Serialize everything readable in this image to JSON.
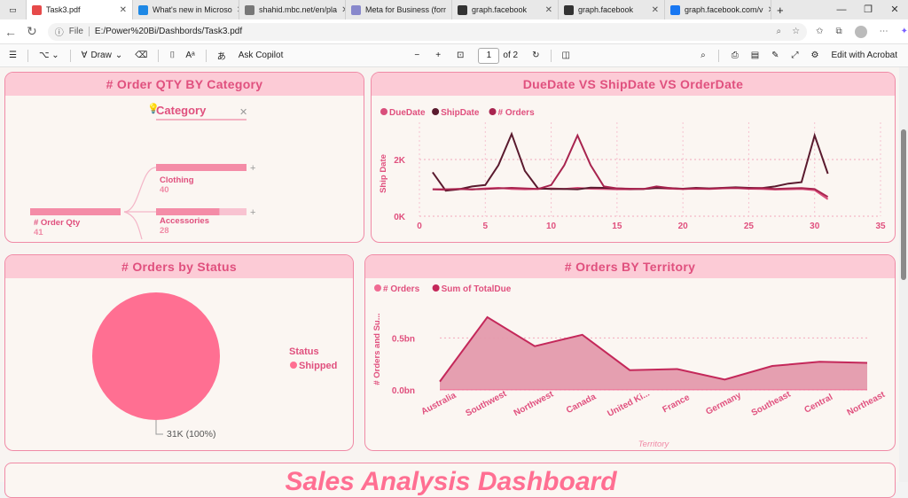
{
  "browser": {
    "tabs": [
      {
        "title": "Task3.pdf",
        "color": "#e64a4a",
        "active": true
      },
      {
        "title": "What's new in Microso",
        "color": "#1e88e5"
      },
      {
        "title": "shahid.mbc.net/en/pla",
        "color": "#777777"
      },
      {
        "title": "Meta for Business (forr",
        "color": "#8888cc"
      },
      {
        "title": "graph.facebook",
        "color": "#333333"
      },
      {
        "title": "graph.facebook",
        "color": "#333333"
      },
      {
        "title": "graph.facebook.com/v",
        "color": "#1877f2"
      }
    ],
    "new_tab": "+",
    "address_prefix": "File",
    "address": "E:/Power%20Bi/Dashbords/Task3.pdf"
  },
  "pdf_toolbar": {
    "draw": "Draw",
    "ask_copilot": "Ask Copilot",
    "page_current": "1",
    "page_total": "of 2",
    "edit_acrobat": "Edit with Acrobat"
  },
  "dashboard": {
    "order_qty": {
      "title": "# Order QTY BY Category",
      "filter_label": "Category",
      "root_label": "# Order Qty",
      "root_value": "41",
      "nodes": [
        {
          "label": "Clothing",
          "value": "40",
          "fraction": 1.0
        },
        {
          "label": "Accessories",
          "value": "28",
          "fraction": 0.7
        }
      ]
    },
    "dates": {
      "title": "DueDate VS ShipDate VS OrderDate",
      "legend": [
        "DueDate",
        "ShipDate",
        "# Orders"
      ]
    },
    "status": {
      "title": "# Orders by Status",
      "legend_title": "Status",
      "legend_item": "Shipped",
      "data_label": "31K (100%)"
    },
    "territory": {
      "title": "# Orders BY Territory",
      "legend": [
        "# Orders",
        "Sum of TotalDue"
      ]
    },
    "bottom_title": "Sales Analysis Dashboard"
  },
  "chart_data": [
    {
      "type": "line",
      "title": "DueDate VS ShipDate VS OrderDate",
      "xlabel": "",
      "ylabel": "Ship Date",
      "xlim": [
        0,
        35
      ],
      "ylim": [
        0,
        3000
      ],
      "x_ticks": [
        0,
        5,
        10,
        15,
        20,
        25,
        30,
        35
      ],
      "y_ticks": [
        {
          "v": 0,
          "label": "0K"
        },
        {
          "v": 2000,
          "label": "2K"
        }
      ],
      "series": [
        {
          "name": "DueDate",
          "color": "#d94f7c",
          "x": [
            1,
            2,
            3,
            4,
            5,
            6,
            7,
            8,
            9,
            10,
            11,
            12,
            13,
            14,
            15,
            16,
            17,
            18,
            19,
            20,
            21,
            22,
            23,
            24,
            25,
            26,
            27,
            28,
            29,
            30,
            31
          ],
          "y": [
            950,
            930,
            960,
            940,
            980,
            1000,
            960,
            950,
            960,
            980,
            960,
            1000,
            970,
            960,
            950,
            950,
            960,
            990,
            970,
            960,
            970,
            960,
            980,
            990,
            970,
            960,
            940,
            950,
            960,
            920,
            600
          ]
        },
        {
          "name": "ShipDate",
          "color": "#5a1a2e",
          "x": [
            1,
            2,
            3,
            4,
            5,
            6,
            7,
            8,
            9,
            10,
            11,
            12,
            13,
            14,
            15,
            16,
            17,
            18,
            19,
            20,
            21,
            22,
            23,
            24,
            25,
            26,
            27,
            28,
            29,
            30,
            31
          ],
          "y": [
            1550,
            900,
            950,
            1050,
            1100,
            1800,
            2900,
            1600,
            980,
            960,
            960,
            950,
            1010,
            1000,
            980,
            960,
            960,
            1000,
            990,
            970,
            1000,
            980,
            1000,
            1020,
            1000,
            990,
            1050,
            1150,
            1200,
            2850,
            1500
          ]
        },
        {
          "name": "# Orders",
          "color": "#a8244f",
          "x": [
            1,
            2,
            3,
            4,
            5,
            6,
            7,
            8,
            9,
            10,
            11,
            12,
            13,
            14,
            15,
            16,
            17,
            18,
            19,
            20,
            21,
            22,
            23,
            24,
            25,
            26,
            27,
            28,
            29,
            30,
            31
          ],
          "y": [
            950,
            950,
            960,
            950,
            960,
            980,
            1000,
            980,
            960,
            1100,
            1800,
            2850,
            1800,
            1050,
            980,
            970,
            960,
            1050,
            990,
            960,
            980,
            970,
            990,
            1000,
            980,
            990,
            960,
            980,
            990,
            960,
            680
          ]
        }
      ],
      "grid": true,
      "legend": "top-left"
    },
    {
      "type": "pie",
      "title": "# Orders by Status",
      "categories": [
        "Shipped"
      ],
      "values": [
        31000
      ],
      "colors": [
        "#ff6f92"
      ],
      "data_labels": [
        "31K (100%)"
      ],
      "legend": "right"
    },
    {
      "type": "area",
      "title": "# Orders BY Territory",
      "xlabel": "Territory",
      "ylabel": "# Orders and Su...",
      "categories": [
        "Australia",
        "Southwest",
        "Northwest",
        "Canada",
        "United Ki...",
        "France",
        "Germany",
        "Southeast",
        "Central",
        "Northeast"
      ],
      "ylim": [
        0,
        0.75
      ],
      "y_ticks": [
        {
          "v": 0,
          "label": "0.0bn"
        },
        {
          "v": 0.5,
          "label": "0.5bn"
        }
      ],
      "series": [
        {
          "name": "# Orders",
          "color": "#f06b93",
          "values": [
            0.001,
            0.001,
            0.001,
            0.001,
            0.001,
            0.001,
            0.001,
            0.001,
            0.001,
            0.001
          ]
        },
        {
          "name": "Sum of TotalDue",
          "color": "#c4285a",
          "fill": "#e49aac",
          "values": [
            0.08,
            0.7,
            0.42,
            0.53,
            0.19,
            0.2,
            0.1,
            0.23,
            0.27,
            0.26
          ]
        }
      ],
      "grid": true,
      "legend": "top-left"
    }
  ]
}
